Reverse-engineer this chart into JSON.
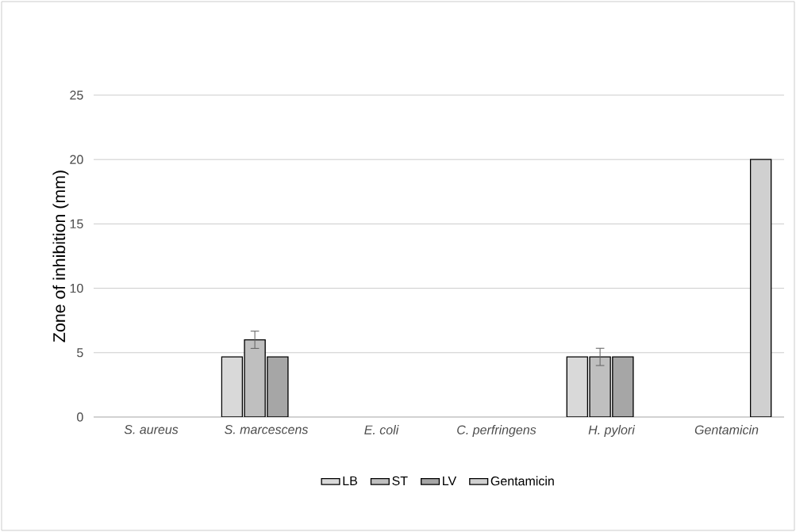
{
  "chart_data": {
    "type": "bar",
    "ylabel": "Zone of inhibition (mm)",
    "categories": [
      "S. aureus",
      "S. marcescens",
      "E. coli",
      "C. perfringens",
      "H. pylori",
      "Gentamicin"
    ],
    "series": [
      {
        "name": "LB",
        "color": "#d9d9d9",
        "values": [
          null,
          4.67,
          null,
          null,
          4.67,
          null
        ]
      },
      {
        "name": "ST",
        "color": "#bfbfbf",
        "values": [
          null,
          6,
          null,
          null,
          4.67,
          null
        ],
        "errors": [
          null,
          0.67,
          null,
          null,
          0.67,
          null
        ]
      },
      {
        "name": "LV",
        "color": "#a6a6a6",
        "values": [
          null,
          4.67,
          null,
          null,
          4.67,
          null
        ]
      },
      {
        "name": "Gentamicin",
        "color": "#d0d0d0",
        "values": [
          null,
          null,
          null,
          null,
          null,
          20
        ]
      }
    ],
    "ylim": [
      0,
      25
    ],
    "yticks": [
      0,
      5,
      10,
      15,
      20,
      25
    ],
    "grid": "y",
    "legend": "bottom"
  }
}
